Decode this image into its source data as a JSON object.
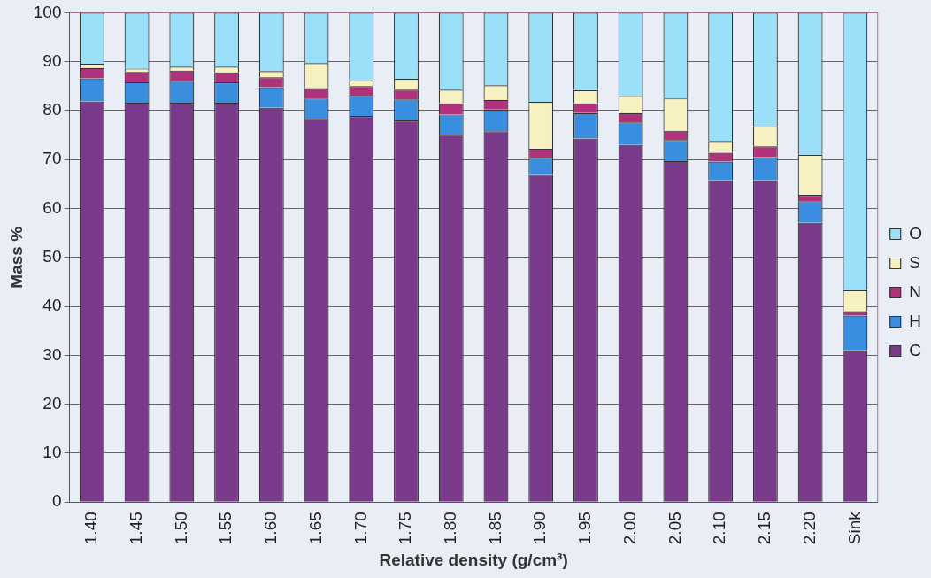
{
  "chart_data": {
    "type": "bar",
    "stacked": true,
    "xlabel": "Relative density (g/cm³)",
    "ylabel": "Mass %",
    "categories": [
      "1.40",
      "1.45",
      "1.50",
      "1.55",
      "1.60",
      "1.65",
      "1.70",
      "1.75",
      "1.80",
      "1.85",
      "1.90",
      "1.95",
      "2.00",
      "2.05",
      "2.10",
      "2.15",
      "2.20",
      "Sink"
    ],
    "series": [
      {
        "name": "C",
        "color": "#7a3a8a",
        "values": [
          81.9,
          81.6,
          81.6,
          81.6,
          80.6,
          78.3,
          78.9,
          78.0,
          75.1,
          75.8,
          66.9,
          74.3,
          73.0,
          69.7,
          65.8,
          65.8,
          57.1,
          31.0
        ]
      },
      {
        "name": "H",
        "color": "#3a8ee0",
        "values": [
          4.7,
          4.2,
          4.5,
          4.2,
          4.2,
          4.2,
          4.1,
          4.3,
          4.1,
          4.4,
          3.5,
          5.2,
          4.6,
          4.3,
          3.8,
          4.7,
          4.4,
          7.1
        ]
      },
      {
        "name": "N",
        "color": "#b0327a",
        "values": [
          2.1,
          2.1,
          2.1,
          2.0,
          2.0,
          2.1,
          2.0,
          2.0,
          2.3,
          2.0,
          1.8,
          2.0,
          1.9,
          1.9,
          1.8,
          2.2,
          1.3,
          0.9
        ]
      },
      {
        "name": "S",
        "color": "#f7f0c0",
        "values": [
          0.9,
          0.7,
          0.8,
          1.2,
          1.3,
          5.1,
          1.2,
          2.2,
          2.8,
          3.0,
          9.6,
          2.7,
          3.5,
          6.6,
          2.4,
          4.1,
          8.2,
          4.3
        ]
      },
      {
        "name": "O",
        "color": "#99e0f8",
        "values": [
          10.4,
          11.4,
          11.0,
          11.0,
          11.9,
          10.3,
          13.8,
          13.5,
          15.7,
          14.8,
          18.2,
          15.8,
          17.0,
          17.5,
          26.2,
          23.2,
          29.0,
          56.7
        ]
      }
    ],
    "ylim": [
      0,
      100
    ],
    "yticks": [
      0,
      10,
      20,
      30,
      40,
      50,
      60,
      70,
      80,
      90,
      100
    ],
    "grid": "y",
    "legend": "right"
  }
}
